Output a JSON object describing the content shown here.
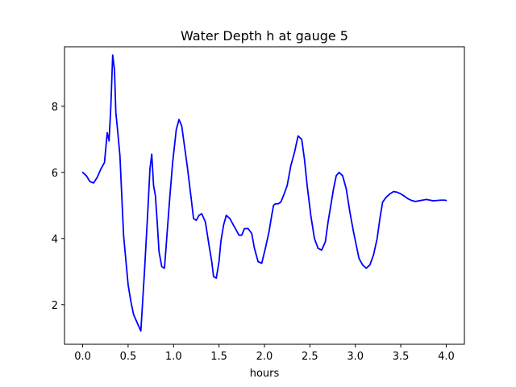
{
  "chart_data": {
    "type": "line",
    "title": "Water Depth h at gauge 5",
    "xlabel": "hours",
    "ylabel": "",
    "xlim": [
      -0.2,
      4.2
    ],
    "ylim": [
      0.8,
      9.8
    ],
    "xticks": [
      0.0,
      0.5,
      1.0,
      1.5,
      2.0,
      2.5,
      3.0,
      3.5,
      4.0
    ],
    "xtick_labels": [
      "0.0",
      "0.5",
      "1.0",
      "1.5",
      "2.0",
      "2.5",
      "3.0",
      "3.5",
      "4.0"
    ],
    "yticks": [
      2,
      4,
      6,
      8
    ],
    "ytick_labels": [
      "2",
      "4",
      "6",
      "8"
    ],
    "grid": false,
    "line_color": "#0000ff",
    "series": [
      {
        "x": [
          0.0,
          0.04,
          0.08,
          0.12,
          0.16,
          0.2,
          0.24,
          0.27,
          0.29,
          0.31,
          0.33,
          0.35,
          0.365,
          0.38,
          0.41,
          0.45,
          0.48,
          0.5,
          0.53,
          0.56,
          0.6,
          0.64,
          0.68,
          0.72,
          0.74,
          0.76,
          0.78,
          0.8,
          0.82,
          0.84,
          0.87,
          0.9,
          0.93,
          0.96,
          0.99,
          1.01,
          1.03,
          1.06,
          1.09,
          1.12,
          1.15,
          1.19,
          1.22,
          1.25,
          1.28,
          1.31,
          1.35,
          1.39,
          1.42,
          1.44,
          1.47,
          1.5,
          1.52,
          1.55,
          1.58,
          1.62,
          1.66,
          1.7,
          1.72,
          1.75,
          1.78,
          1.82,
          1.86,
          1.89,
          1.93,
          1.97,
          2.01,
          2.05,
          2.08,
          2.1,
          2.12,
          2.15,
          2.18,
          2.21,
          2.25,
          2.29,
          2.33,
          2.37,
          2.41,
          2.44,
          2.47,
          2.51,
          2.55,
          2.59,
          2.63,
          2.67,
          2.7,
          2.73,
          2.76,
          2.79,
          2.82,
          2.86,
          2.9,
          2.94,
          2.98,
          3.01,
          3.04,
          3.08,
          3.12,
          3.16,
          3.2,
          3.24,
          3.27,
          3.3,
          3.34,
          3.38,
          3.42,
          3.46,
          3.5,
          3.54,
          3.58,
          3.62,
          3.66,
          3.7,
          3.74,
          3.78,
          3.82,
          3.86,
          3.9,
          3.94,
          3.98,
          4.0
        ],
        "y": [
          6.0,
          5.9,
          5.72,
          5.68,
          5.85,
          6.1,
          6.3,
          7.2,
          6.95,
          8.0,
          9.55,
          9.1,
          7.8,
          7.4,
          6.5,
          4.1,
          3.2,
          2.6,
          2.1,
          1.7,
          1.45,
          1.2,
          3.0,
          5.0,
          6.1,
          6.55,
          5.6,
          5.3,
          4.5,
          3.6,
          3.15,
          3.1,
          4.2,
          5.3,
          6.3,
          6.8,
          7.3,
          7.6,
          7.4,
          6.8,
          6.2,
          5.3,
          4.6,
          4.55,
          4.7,
          4.75,
          4.5,
          3.8,
          3.3,
          2.85,
          2.8,
          3.3,
          3.9,
          4.4,
          4.7,
          4.6,
          4.4,
          4.2,
          4.1,
          4.1,
          4.3,
          4.3,
          4.15,
          3.7,
          3.3,
          3.25,
          3.7,
          4.2,
          4.7,
          5.0,
          5.05,
          5.05,
          5.1,
          5.3,
          5.6,
          6.2,
          6.6,
          7.1,
          7.0,
          6.4,
          5.6,
          4.7,
          4.0,
          3.7,
          3.65,
          3.9,
          4.5,
          5.0,
          5.5,
          5.9,
          6.0,
          5.9,
          5.5,
          4.8,
          4.2,
          3.8,
          3.4,
          3.2,
          3.1,
          3.2,
          3.5,
          4.0,
          4.6,
          5.1,
          5.25,
          5.35,
          5.42,
          5.4,
          5.35,
          5.28,
          5.2,
          5.15,
          5.12,
          5.14,
          5.16,
          5.18,
          5.16,
          5.14,
          5.15,
          5.16,
          5.16,
          5.15
        ]
      }
    ]
  }
}
